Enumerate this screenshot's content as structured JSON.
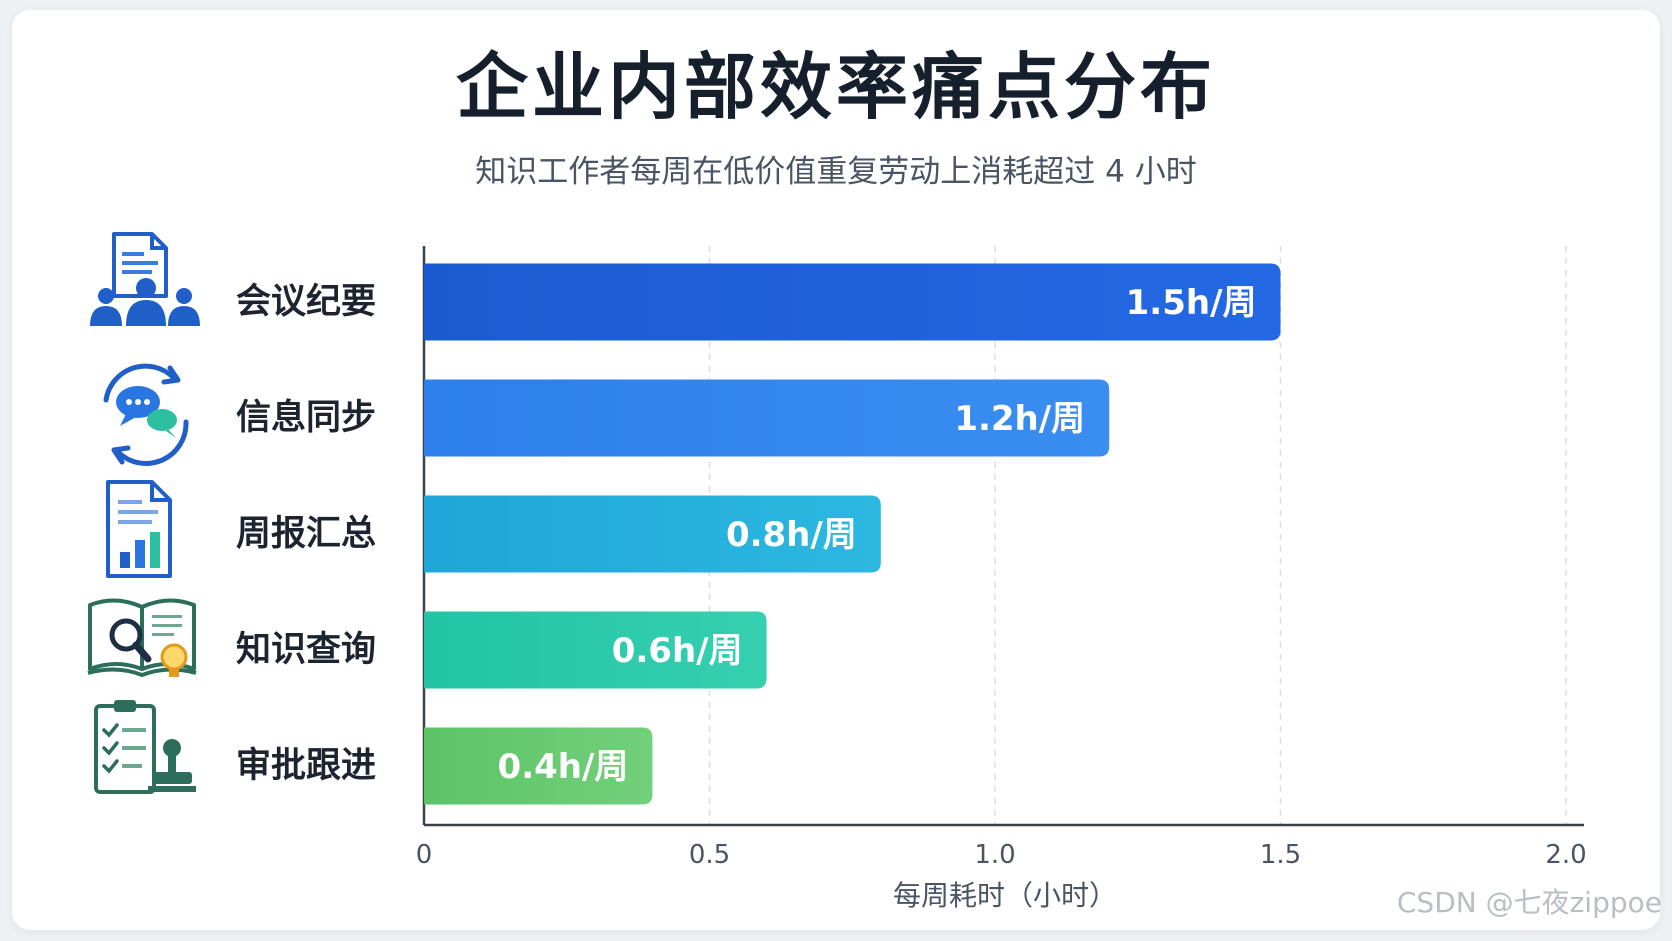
{
  "title": "企业内部效率痛点分布",
  "subtitle": "知识工作者每周在低价值重复劳动上消耗超过 4 小时",
  "watermark": "CSDN @七夜zippoe",
  "chart_data": {
    "type": "bar",
    "orientation": "horizontal",
    "categories": [
      "会议纪要",
      "信息同步",
      "周报汇总",
      "知识查询",
      "审批跟进"
    ],
    "values": [
      1.5,
      1.2,
      0.8,
      0.6,
      0.4
    ],
    "data_labels": [
      "1.5h/周",
      "1.2h/周",
      "0.8h/周",
      "0.6h/周",
      "0.4h/周"
    ],
    "colors": [
      [
        "#1b5bd2",
        "#2468e4"
      ],
      [
        "#2e7fea",
        "#3a8ef0"
      ],
      [
        "#1fa6d8",
        "#2cb8e0"
      ],
      [
        "#22c3a6",
        "#35d0b0"
      ],
      [
        "#5cc466",
        "#72d07a"
      ]
    ],
    "icons": [
      "meeting-notes-icon",
      "sync-chat-icon",
      "report-chart-icon",
      "book-search-icon",
      "approval-checklist-icon"
    ],
    "xlabel": "每周耗时（小时）",
    "xlim": [
      0,
      2.0
    ],
    "xticks": [
      0,
      0.5,
      1.0,
      1.5,
      2.0
    ],
    "xtick_labels": [
      "0",
      "0.5",
      "1.0",
      "1.5",
      "2.0"
    ],
    "grid": true
  }
}
